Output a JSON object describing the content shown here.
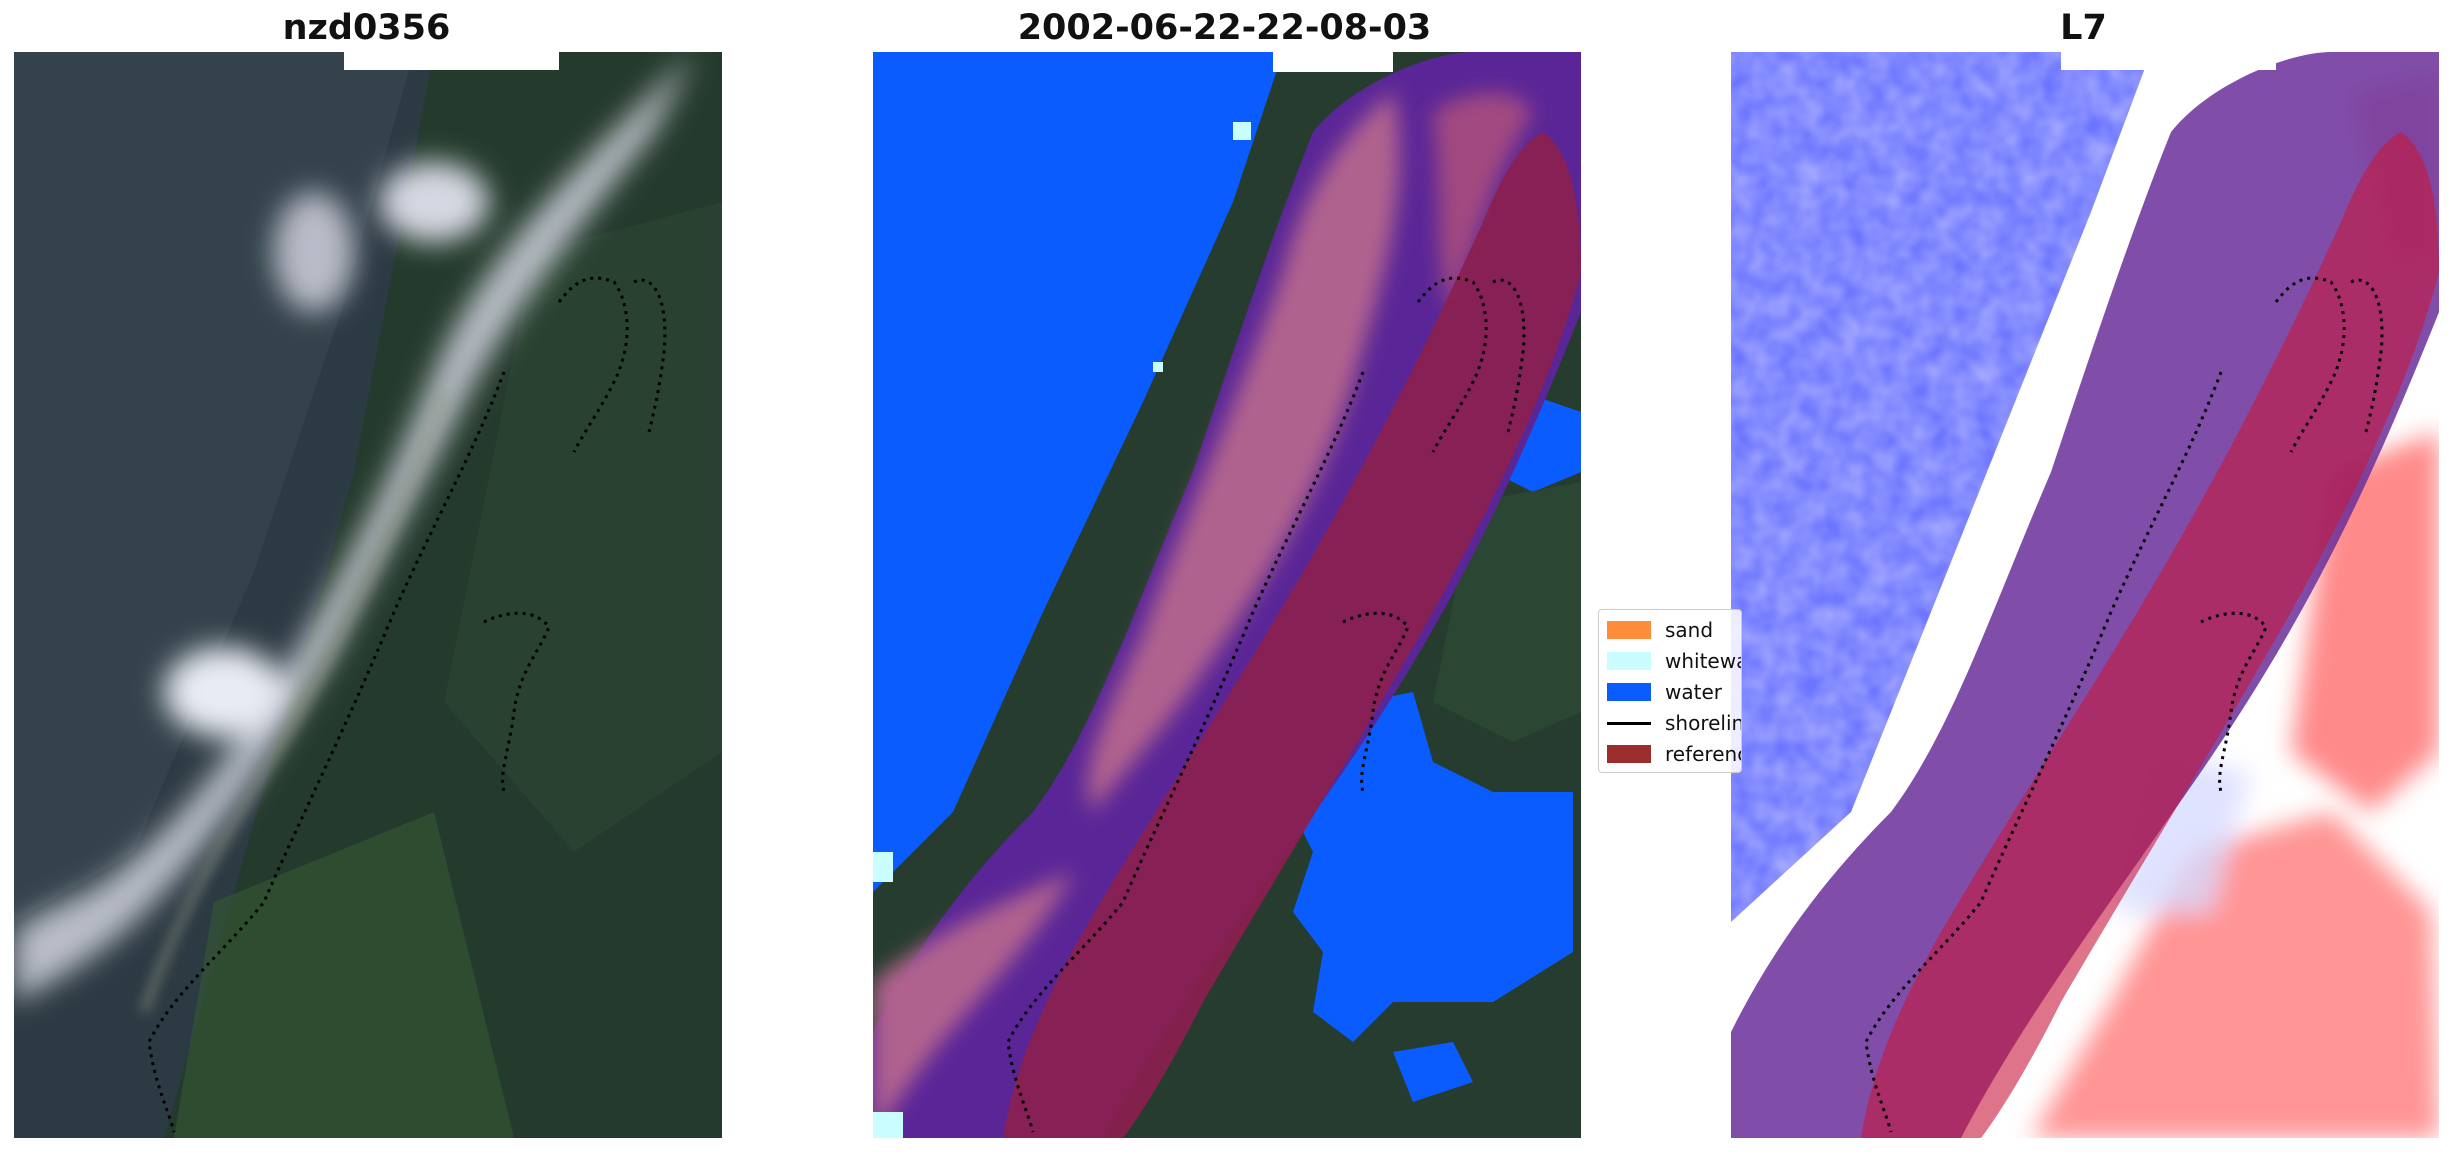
{
  "panels": [
    {
      "title": "nzd0356"
    },
    {
      "title": "2002-06-22-22-08-03"
    },
    {
      "title": "L7"
    }
  ],
  "legend": {
    "items": [
      {
        "label": "sand",
        "color": "#ff8c3a",
        "kind": "patch"
      },
      {
        "label": "whitewater",
        "color": "#c9fdff",
        "kind": "patch"
      },
      {
        "label": "water",
        "color": "#0a5cff",
        "kind": "patch"
      },
      {
        "label": "shoreline",
        "color": "#000000",
        "kind": "line"
      },
      {
        "label": "reference",
        "color": "#9b2d2d",
        "kind": "patch"
      }
    ]
  },
  "colors": {
    "forest": "#2b3d31",
    "ocean_dark": "#2a3c48",
    "surf": "#d9dde6",
    "water_class": "#0a5cff",
    "whitewater_class": "#c9fdff",
    "buffer_purple": "#5a2697",
    "buffer_mauve": "#b0628e",
    "reference_band": "#8b1f4f",
    "index_blue": "#3a4dff",
    "index_red": "#ff2a2a"
  }
}
